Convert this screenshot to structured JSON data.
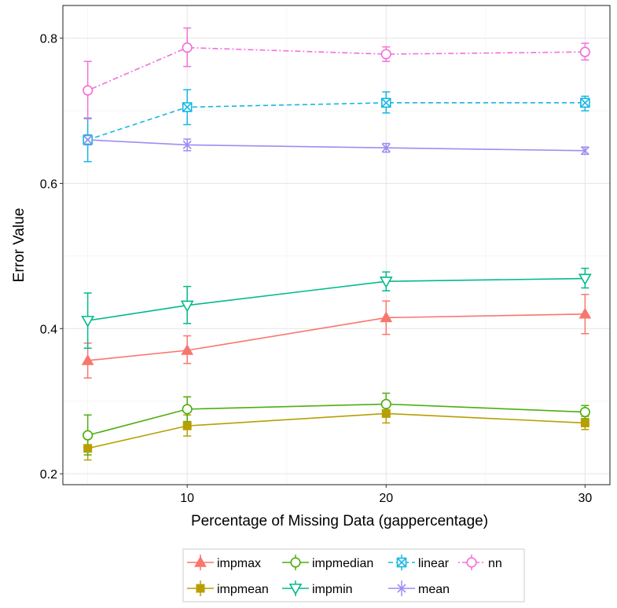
{
  "chart_data": {
    "type": "line",
    "xlabel": "Percentage of Missing Data (gappercentage)",
    "ylabel": "Error Value",
    "xlim": [
      3.75,
      31.25
    ],
    "ylim": [
      0.185,
      0.845
    ],
    "xticks": [
      10,
      20,
      30
    ],
    "yticks": [
      0.2,
      0.4,
      0.6,
      0.8
    ],
    "grid": true,
    "legend_position": "bottom",
    "x": [
      5,
      10,
      20,
      30
    ],
    "series": [
      {
        "name": "impmax",
        "color": "#f8766d",
        "marker": "triangle-up",
        "dash": "solid",
        "values": [
          0.356,
          0.37,
          0.415,
          0.42
        ],
        "err_low": [
          0.332,
          0.352,
          0.392,
          0.393
        ],
        "err_high": [
          0.38,
          0.39,
          0.438,
          0.447
        ]
      },
      {
        "name": "impmean",
        "color": "#b79f00",
        "marker": "square-filled",
        "dash": "solid",
        "values": [
          0.235,
          0.266,
          0.283,
          0.27
        ],
        "err_low": [
          0.219,
          0.252,
          0.27,
          0.261
        ],
        "err_high": [
          0.251,
          0.281,
          0.296,
          0.279
        ]
      },
      {
        "name": "impmedian",
        "color": "#4dae0f",
        "marker": "circle-open",
        "dash": "solid",
        "values": [
          0.253,
          0.289,
          0.296,
          0.285
        ],
        "err_low": [
          0.226,
          0.272,
          0.282,
          0.276
        ],
        "err_high": [
          0.281,
          0.306,
          0.311,
          0.294
        ]
      },
      {
        "name": "impmin",
        "color": "#00ba8b",
        "marker": "triangle-down-open",
        "dash": "solid",
        "values": [
          0.411,
          0.432,
          0.465,
          0.469
        ],
        "err_low": [
          0.373,
          0.407,
          0.452,
          0.456
        ],
        "err_high": [
          0.449,
          0.458,
          0.478,
          0.483
        ]
      },
      {
        "name": "linear",
        "color": "#14b7e1",
        "marker": "square-x",
        "dash": "dashed",
        "values": [
          0.66,
          0.705,
          0.711,
          0.711
        ],
        "err_low": [
          0.63,
          0.681,
          0.697,
          0.7
        ],
        "err_high": [
          0.69,
          0.729,
          0.726,
          0.72
        ]
      },
      {
        "name": "mean",
        "color": "#9e8cf2",
        "marker": "x",
        "dash": "solid",
        "values": [
          0.66,
          0.653,
          0.649,
          0.645
        ],
        "err_low": [
          0.653,
          0.645,
          0.643,
          0.64
        ],
        "err_high": [
          0.667,
          0.661,
          0.655,
          0.65
        ]
      },
      {
        "name": "nn",
        "color": "#f46fd9",
        "marker": "circle-open",
        "dash": "dotdash",
        "values": [
          0.728,
          0.787,
          0.778,
          0.781
        ],
        "err_low": [
          0.689,
          0.761,
          0.768,
          0.77
        ],
        "err_high": [
          0.768,
          0.814,
          0.788,
          0.793
        ]
      }
    ]
  }
}
